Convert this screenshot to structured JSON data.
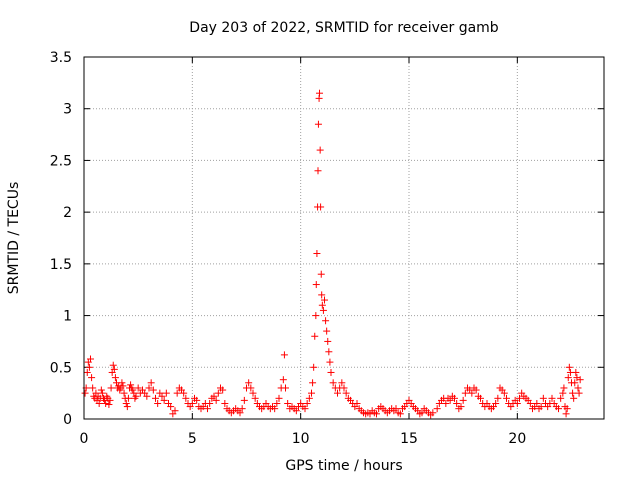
{
  "chart_data": {
    "type": "scatter",
    "title": "Day 203 of 2022, SRMTID for receiver gamb",
    "xlabel": "GPS time / hours",
    "ylabel": "SRMTID / TECUs",
    "xlim": [
      0,
      24
    ],
    "ylim": [
      0,
      3.5
    ],
    "xticks": [
      0,
      5,
      10,
      15,
      20
    ],
    "xtick_labels": [
      "0",
      "5",
      "10",
      "15",
      "20"
    ],
    "yticks": [
      0,
      0.5,
      1,
      1.5,
      2,
      2.5,
      3,
      3.5
    ],
    "ytick_labels": [
      "0",
      "0.5",
      "1",
      "1.5",
      "2",
      "2.5",
      "3",
      "3.5"
    ],
    "grid": true,
    "marker": "+",
    "series": [
      {
        "name": "SRMTID",
        "color": "#ff0000",
        "points": [
          [
            0.05,
            0.25
          ],
          [
            0.1,
            0.3
          ],
          [
            0.15,
            0.45
          ],
          [
            0.2,
            0.55
          ],
          [
            0.25,
            0.5
          ],
          [
            0.3,
            0.58
          ],
          [
            0.35,
            0.4
          ],
          [
            0.4,
            0.3
          ],
          [
            0.45,
            0.22
          ],
          [
            0.5,
            0.2
          ],
          [
            0.55,
            0.25
          ],
          [
            0.6,
            0.18
          ],
          [
            0.65,
            0.22
          ],
          [
            0.7,
            0.15
          ],
          [
            0.75,
            0.2
          ],
          [
            0.8,
            0.28
          ],
          [
            0.85,
            0.25
          ],
          [
            0.9,
            0.2
          ],
          [
            0.95,
            0.18
          ],
          [
            1.0,
            0.15
          ],
          [
            1.05,
            0.22
          ],
          [
            1.1,
            0.2
          ],
          [
            1.15,
            0.14
          ],
          [
            1.2,
            0.18
          ],
          [
            1.25,
            0.3
          ],
          [
            1.3,
            0.45
          ],
          [
            1.35,
            0.52
          ],
          [
            1.4,
            0.48
          ],
          [
            1.45,
            0.4
          ],
          [
            1.5,
            0.35
          ],
          [
            1.55,
            0.3
          ],
          [
            1.6,
            0.32
          ],
          [
            1.65,
            0.28
          ],
          [
            1.7,
            0.3
          ],
          [
            1.75,
            0.35
          ],
          [
            1.8,
            0.32
          ],
          [
            1.85,
            0.25
          ],
          [
            1.9,
            0.2
          ],
          [
            1.95,
            0.15
          ],
          [
            2.0,
            0.12
          ],
          [
            2.05,
            0.2
          ],
          [
            2.1,
            0.3
          ],
          [
            2.15,
            0.33
          ],
          [
            2.2,
            0.3
          ],
          [
            2.25,
            0.28
          ],
          [
            2.3,
            0.25
          ],
          [
            2.35,
            0.2
          ],
          [
            2.4,
            0.22
          ],
          [
            2.5,
            0.3
          ],
          [
            2.6,
            0.25
          ],
          [
            2.7,
            0.28
          ],
          [
            2.8,
            0.25
          ],
          [
            2.9,
            0.22
          ],
          [
            3.0,
            0.3
          ],
          [
            3.1,
            0.35
          ],
          [
            3.2,
            0.28
          ],
          [
            3.3,
            0.2
          ],
          [
            3.4,
            0.15
          ],
          [
            3.5,
            0.25
          ],
          [
            3.6,
            0.22
          ],
          [
            3.7,
            0.18
          ],
          [
            3.8,
            0.25
          ],
          [
            3.9,
            0.15
          ],
          [
            4.0,
            0.12
          ],
          [
            4.1,
            0.05
          ],
          [
            4.2,
            0.08
          ],
          [
            4.3,
            0.25
          ],
          [
            4.4,
            0.3
          ],
          [
            4.5,
            0.28
          ],
          [
            4.6,
            0.25
          ],
          [
            4.7,
            0.2
          ],
          [
            4.8,
            0.15
          ],
          [
            4.9,
            0.12
          ],
          [
            5.0,
            0.15
          ],
          [
            5.1,
            0.2
          ],
          [
            5.2,
            0.18
          ],
          [
            5.3,
            0.12
          ],
          [
            5.4,
            0.1
          ],
          [
            5.5,
            0.12
          ],
          [
            5.6,
            0.15
          ],
          [
            5.7,
            0.1
          ],
          [
            5.8,
            0.15
          ],
          [
            5.9,
            0.2
          ],
          [
            6.0,
            0.22
          ],
          [
            6.1,
            0.18
          ],
          [
            6.2,
            0.25
          ],
          [
            6.3,
            0.3
          ],
          [
            6.4,
            0.28
          ],
          [
            6.5,
            0.15
          ],
          [
            6.6,
            0.1
          ],
          [
            6.7,
            0.08
          ],
          [
            6.8,
            0.06
          ],
          [
            6.9,
            0.08
          ],
          [
            7.0,
            0.1
          ],
          [
            7.1,
            0.08
          ],
          [
            7.2,
            0.06
          ],
          [
            7.3,
            0.1
          ],
          [
            7.4,
            0.18
          ],
          [
            7.5,
            0.3
          ],
          [
            7.6,
            0.35
          ],
          [
            7.7,
            0.3
          ],
          [
            7.8,
            0.25
          ],
          [
            7.9,
            0.2
          ],
          [
            8.0,
            0.15
          ],
          [
            8.1,
            0.12
          ],
          [
            8.2,
            0.1
          ],
          [
            8.3,
            0.12
          ],
          [
            8.4,
            0.15
          ],
          [
            8.5,
            0.12
          ],
          [
            8.6,
            0.1
          ],
          [
            8.7,
            0.12
          ],
          [
            8.8,
            0.1
          ],
          [
            8.9,
            0.15
          ],
          [
            9.0,
            0.2
          ],
          [
            9.1,
            0.3
          ],
          [
            9.2,
            0.38
          ],
          [
            9.25,
            0.62
          ],
          [
            9.3,
            0.3
          ],
          [
            9.4,
            0.15
          ],
          [
            9.5,
            0.1
          ],
          [
            9.6,
            0.12
          ],
          [
            9.7,
            0.1
          ],
          [
            9.8,
            0.08
          ],
          [
            9.9,
            0.12
          ],
          [
            10.0,
            0.15
          ],
          [
            10.1,
            0.12
          ],
          [
            10.2,
            0.1
          ],
          [
            10.3,
            0.15
          ],
          [
            10.4,
            0.2
          ],
          [
            10.5,
            0.25
          ],
          [
            10.55,
            0.35
          ],
          [
            10.6,
            0.5
          ],
          [
            10.65,
            0.8
          ],
          [
            10.7,
            1.0
          ],
          [
            10.72,
            1.3
          ],
          [
            10.75,
            1.6
          ],
          [
            10.78,
            2.05
          ],
          [
            10.8,
            2.4
          ],
          [
            10.82,
            2.85
          ],
          [
            10.85,
            3.1
          ],
          [
            10.87,
            3.15
          ],
          [
            10.9,
            2.6
          ],
          [
            10.92,
            2.05
          ],
          [
            10.95,
            1.4
          ],
          [
            10.97,
            1.2
          ],
          [
            11.0,
            1.1
          ],
          [
            11.05,
            1.05
          ],
          [
            11.1,
            1.15
          ],
          [
            11.15,
            0.95
          ],
          [
            11.2,
            0.85
          ],
          [
            11.25,
            0.75
          ],
          [
            11.3,
            0.65
          ],
          [
            11.35,
            0.55
          ],
          [
            11.4,
            0.45
          ],
          [
            11.5,
            0.35
          ],
          [
            11.6,
            0.3
          ],
          [
            11.7,
            0.25
          ],
          [
            11.8,
            0.3
          ],
          [
            11.9,
            0.35
          ],
          [
            12.0,
            0.3
          ],
          [
            12.1,
            0.25
          ],
          [
            12.2,
            0.2
          ],
          [
            12.3,
            0.18
          ],
          [
            12.4,
            0.15
          ],
          [
            12.5,
            0.12
          ],
          [
            12.6,
            0.15
          ],
          [
            12.7,
            0.1
          ],
          [
            12.8,
            0.08
          ],
          [
            12.9,
            0.06
          ],
          [
            13.0,
            0.05
          ],
          [
            13.1,
            0.06
          ],
          [
            13.2,
            0.05
          ],
          [
            13.3,
            0.08
          ],
          [
            13.4,
            0.06
          ],
          [
            13.5,
            0.05
          ],
          [
            13.6,
            0.1
          ],
          [
            13.7,
            0.12
          ],
          [
            13.8,
            0.1
          ],
          [
            13.9,
            0.08
          ],
          [
            14.0,
            0.06
          ],
          [
            14.1,
            0.08
          ],
          [
            14.2,
            0.1
          ],
          [
            14.3,
            0.08
          ],
          [
            14.4,
            0.1
          ],
          [
            14.5,
            0.06
          ],
          [
            14.6,
            0.05
          ],
          [
            14.7,
            0.1
          ],
          [
            14.8,
            0.12
          ],
          [
            14.9,
            0.15
          ],
          [
            15.0,
            0.18
          ],
          [
            15.1,
            0.15
          ],
          [
            15.2,
            0.12
          ],
          [
            15.3,
            0.1
          ],
          [
            15.4,
            0.08
          ],
          [
            15.5,
            0.05
          ],
          [
            15.6,
            0.06
          ],
          [
            15.7,
            0.1
          ],
          [
            15.8,
            0.08
          ],
          [
            15.9,
            0.06
          ],
          [
            16.0,
            0.04
          ],
          [
            16.1,
            0.06
          ],
          [
            16.3,
            0.1
          ],
          [
            16.4,
            0.15
          ],
          [
            16.5,
            0.18
          ],
          [
            16.6,
            0.2
          ],
          [
            16.7,
            0.15
          ],
          [
            16.8,
            0.2
          ],
          [
            16.9,
            0.18
          ],
          [
            17.0,
            0.22
          ],
          [
            17.1,
            0.2
          ],
          [
            17.2,
            0.15
          ],
          [
            17.3,
            0.1
          ],
          [
            17.4,
            0.12
          ],
          [
            17.5,
            0.18
          ],
          [
            17.6,
            0.25
          ],
          [
            17.7,
            0.3
          ],
          [
            17.8,
            0.28
          ],
          [
            17.9,
            0.25
          ],
          [
            18.0,
            0.3
          ],
          [
            18.1,
            0.28
          ],
          [
            18.2,
            0.22
          ],
          [
            18.3,
            0.2
          ],
          [
            18.4,
            0.15
          ],
          [
            18.5,
            0.12
          ],
          [
            18.6,
            0.15
          ],
          [
            18.7,
            0.12
          ],
          [
            18.8,
            0.1
          ],
          [
            18.9,
            0.12
          ],
          [
            19.0,
            0.15
          ],
          [
            19.1,
            0.2
          ],
          [
            19.2,
            0.3
          ],
          [
            19.3,
            0.28
          ],
          [
            19.4,
            0.25
          ],
          [
            19.5,
            0.2
          ],
          [
            19.6,
            0.15
          ],
          [
            19.7,
            0.12
          ],
          [
            19.8,
            0.15
          ],
          [
            19.9,
            0.18
          ],
          [
            20.0,
            0.15
          ],
          [
            20.1,
            0.2
          ],
          [
            20.2,
            0.25
          ],
          [
            20.3,
            0.22
          ],
          [
            20.4,
            0.2
          ],
          [
            20.5,
            0.18
          ],
          [
            20.6,
            0.15
          ],
          [
            20.7,
            0.1
          ],
          [
            20.8,
            0.12
          ],
          [
            20.9,
            0.15
          ],
          [
            21.0,
            0.1
          ],
          [
            21.1,
            0.12
          ],
          [
            21.2,
            0.2
          ],
          [
            21.3,
            0.15
          ],
          [
            21.4,
            0.12
          ],
          [
            21.5,
            0.15
          ],
          [
            21.6,
            0.2
          ],
          [
            21.7,
            0.15
          ],
          [
            21.8,
            0.12
          ],
          [
            21.9,
            0.1
          ],
          [
            22.0,
            0.2
          ],
          [
            22.1,
            0.25
          ],
          [
            22.15,
            0.3
          ],
          [
            22.2,
            0.12
          ],
          [
            22.25,
            0.05
          ],
          [
            22.3,
            0.1
          ],
          [
            22.35,
            0.4
          ],
          [
            22.4,
            0.5
          ],
          [
            22.45,
            0.45
          ],
          [
            22.5,
            0.35
          ],
          [
            22.55,
            0.25
          ],
          [
            22.6,
            0.2
          ],
          [
            22.65,
            0.35
          ],
          [
            22.7,
            0.45
          ],
          [
            22.75,
            0.4
          ],
          [
            22.8,
            0.3
          ],
          [
            22.85,
            0.25
          ],
          [
            22.9,
            0.38
          ]
        ]
      }
    ]
  }
}
